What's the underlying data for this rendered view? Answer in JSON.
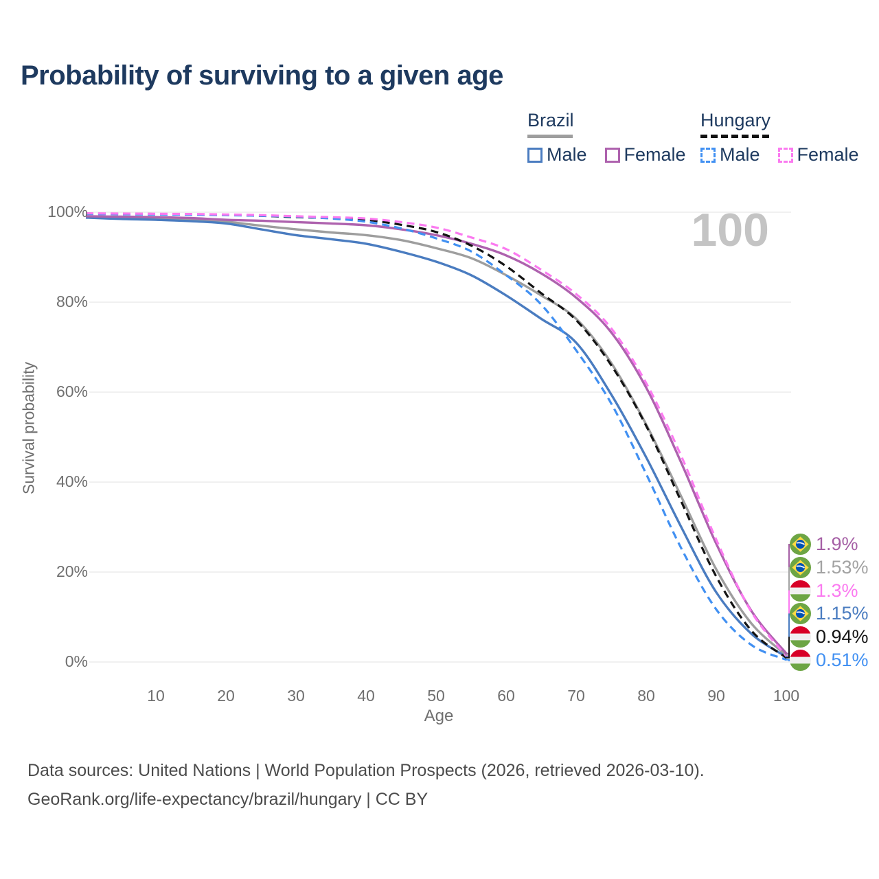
{
  "title": "Probability of surviving to a given age",
  "watermark": "100",
  "colors": {
    "title_text": "#1e3a5f",
    "legend_text": "#1e3a5f",
    "axis_text": "#6f6f6f",
    "gridline": "#e7e7e7",
    "watermark": "#c4c4c4",
    "footer_text": "#4c4c4c",
    "brazil_male": "#4a7cc0",
    "brazil_female": "#ae62ae",
    "brazil_total": "#9e9e9e",
    "hungary_male": "#4190f2",
    "hungary_female": "#fb7af0",
    "hungary_total": "#141414"
  },
  "legend": {
    "groups": [
      {
        "id": "brazil",
        "label": "Brazil",
        "underline_style": "solid",
        "underline_color": "#9e9e9e",
        "items": [
          {
            "label": "Male",
            "color": "#4a7cc0",
            "dash": false
          },
          {
            "label": "Female",
            "color": "#ae62ae",
            "dash": false
          }
        ]
      },
      {
        "id": "hungary",
        "label": "Hungary",
        "underline_style": "dashed",
        "underline_color": "#111111",
        "items": [
          {
            "label": "Male",
            "color": "#4190f2",
            "dash": true
          },
          {
            "label": "Female",
            "color": "#fb7af0",
            "dash": true
          }
        ]
      }
    ]
  },
  "chart_data": {
    "type": "line",
    "title": "Probability of surviving to a given age",
    "xlabel": "Age",
    "ylabel": "Survival probability",
    "xlim": [
      0,
      100
    ],
    "ylim": [
      0,
      100
    ],
    "grid": "horizontal",
    "legend_position": "top-right",
    "x_ticks": [
      10,
      20,
      30,
      40,
      50,
      60,
      70,
      80,
      90,
      100
    ],
    "y_ticks": [
      0,
      20,
      40,
      60,
      80,
      100
    ],
    "y_tick_labels": [
      "0%",
      "20%",
      "40%",
      "60%",
      "80%",
      "100%"
    ],
    "ages": [
      0,
      5,
      10,
      15,
      20,
      25,
      30,
      35,
      40,
      45,
      50,
      55,
      60,
      65,
      70,
      75,
      80,
      85,
      90,
      95,
      100
    ],
    "series": [
      {
        "id": "brazil-total",
        "name": "Brazil Total",
        "country": "Brazil",
        "sex": "total",
        "line": "solid",
        "color": "#9e9e9e",
        "end_label": "1.53%",
        "values": [
          99.0,
          98.8,
          98.6,
          98.4,
          97.9,
          97.0,
          96.2,
          95.5,
          94.9,
          93.8,
          92.0,
          89.8,
          86.0,
          81.5,
          76.3,
          66.5,
          52.8,
          36.8,
          20.6,
          8.6,
          1.53
        ]
      },
      {
        "id": "brazil-male",
        "name": "Brazil Male",
        "country": "Brazil",
        "sex": "male",
        "line": "solid",
        "color": "#4a7cc0",
        "end_label": "1.15%",
        "values": [
          98.8,
          98.5,
          98.3,
          98.0,
          97.5,
          96.2,
          94.9,
          94.0,
          93.0,
          91.2,
          89.0,
          86.0,
          81.5,
          76.3,
          71.0,
          59.5,
          45.5,
          30.0,
          15.5,
          6.3,
          1.15
        ]
      },
      {
        "id": "brazil-female",
        "name": "Brazil Female",
        "country": "Brazil",
        "sex": "female",
        "line": "solid",
        "color": "#ae62ae",
        "end_label": "1.9%",
        "values": [
          99.1,
          99.0,
          98.9,
          98.7,
          98.3,
          98.1,
          97.8,
          97.5,
          97.1,
          96.2,
          94.9,
          93.0,
          90.4,
          86.4,
          81.0,
          73.3,
          61.0,
          44.3,
          26.3,
          11.4,
          1.9
        ]
      },
      {
        "id": "hungary-total",
        "name": "Hungary Total",
        "country": "Hungary",
        "sex": "total",
        "line": "dashed",
        "color": "#141414",
        "end_label": "0.94%",
        "values": [
          99.7,
          99.65,
          99.6,
          99.5,
          99.4,
          99.2,
          98.9,
          98.7,
          98.3,
          97.2,
          95.6,
          92.6,
          88.0,
          82.0,
          76.0,
          66.0,
          52.5,
          35.7,
          19.0,
          7.0,
          0.94
        ]
      },
      {
        "id": "hungary-male",
        "name": "Hungary Male",
        "country": "Hungary",
        "sex": "male",
        "line": "dashed",
        "color": "#4190f2",
        "end_label": "0.51%",
        "values": [
          99.6,
          99.55,
          99.5,
          99.45,
          99.35,
          99.2,
          99.0,
          98.6,
          97.9,
          96.4,
          94.2,
          91.3,
          86.0,
          79.5,
          69.3,
          57.5,
          41.8,
          25.3,
          11.7,
          3.8,
          0.51
        ]
      },
      {
        "id": "hungary-female",
        "name": "Hungary Female",
        "country": "Hungary",
        "sex": "female",
        "line": "dashed",
        "color": "#fb7af0",
        "end_label": "1.3%",
        "values": [
          99.75,
          99.7,
          99.65,
          99.6,
          99.5,
          99.35,
          99.1,
          98.9,
          98.6,
          97.8,
          96.6,
          94.4,
          91.8,
          87.2,
          81.8,
          74.2,
          62.0,
          45.8,
          27.2,
          11.2,
          1.3
        ]
      }
    ]
  },
  "end_labels": [
    {
      "text": "1.9%",
      "series": "brazil-female",
      "flag": "brazil-flag-icon",
      "color": "#a55fa5",
      "value": 1.9
    },
    {
      "text": "1.53%",
      "series": "brazil-total",
      "flag": "brazil-flag-icon",
      "color": "#a3a3a3",
      "value": 1.53
    },
    {
      "text": "1.3%",
      "series": "hungary-female",
      "flag": "hungary-flag-icon",
      "color": "#fb7af0",
      "value": 1.3
    },
    {
      "text": "1.15%",
      "series": "brazil-male",
      "flag": "brazil-flag-icon",
      "color": "#4a7cc0",
      "value": 1.15
    },
    {
      "text": "0.94%",
      "series": "hungary-total",
      "flag": "hungary-flag-icon",
      "color": "#141414",
      "value": 0.94
    },
    {
      "text": "0.51%",
      "series": "hungary-male",
      "flag": "hungary-flag-icon",
      "color": "#4190f2",
      "value": 0.51
    }
  ],
  "footer": {
    "line1": "Data sources: United Nations | World Population Prospects (2026, retrieved 2026-03-10).",
    "line2": "GeoRank.org/life-expectancy/brazil/hungary | CC BY"
  }
}
